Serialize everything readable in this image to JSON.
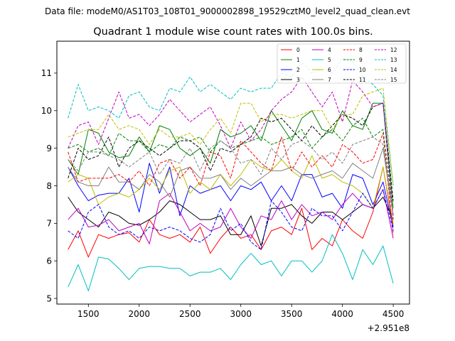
{
  "chart_data": {
    "type": "line",
    "suptitle": "Data file: modeM0/AS1T03_108T01_9000002898_19529cztM0_level2_quad_clean.evt",
    "title": "Quadrant 1 module wise count rates with 100.0s bins.",
    "xlabel": "",
    "ylabel": "",
    "x_offset_label": "+2.951e8",
    "xlim": [
      1190,
      4660
    ],
    "ylim": [
      4.85,
      11.85
    ],
    "x_ticks": [
      1500,
      2000,
      2500,
      3000,
      3500,
      4000,
      4500
    ],
    "x_tick_labels": [
      "1500",
      "2000",
      "2500",
      "3000",
      "3500",
      "4000",
      "4500"
    ],
    "y_ticks": [
      5,
      6,
      7,
      8,
      9,
      10,
      11
    ],
    "y_tick_labels": [
      "5",
      "6",
      "7",
      "8",
      "9",
      "10",
      "11"
    ],
    "legend_position": "top-right",
    "x": [
      1300,
      1400,
      1500,
      1600,
      1700,
      1800,
      1900,
      2000,
      2100,
      2200,
      2300,
      2400,
      2500,
      2600,
      2700,
      2800,
      2900,
      3000,
      3100,
      3200,
      3300,
      3400,
      3500,
      3600,
      3700,
      3800,
      3900,
      4000,
      4100,
      4200,
      4300,
      4400,
      4500
    ],
    "series": [
      {
        "name": "0",
        "color": "#ff0000",
        "dash": "solid",
        "values": [
          6.3,
          6.8,
          6.1,
          6.7,
          6.6,
          6.7,
          6.75,
          6.5,
          7.1,
          6.7,
          6.6,
          6.7,
          6.5,
          6.9,
          6.2,
          6.6,
          6.9,
          6.6,
          6.7,
          6.3,
          6.8,
          6.9,
          6.7,
          7.4,
          6.3,
          6.6,
          6.4,
          7.1,
          6.8,
          6.6,
          7.3,
          8.5,
          6.9
        ]
      },
      {
        "name": "1",
        "color": "#008000",
        "dash": "solid",
        "values": [
          8.7,
          8.3,
          9.5,
          9.4,
          8.9,
          8.75,
          8.8,
          9.3,
          8.9,
          9.6,
          9.5,
          9.0,
          8.8,
          9.0,
          8.6,
          9.5,
          9.3,
          9.4,
          9.6,
          9.2,
          10.0,
          9.6,
          9.2,
          9.8,
          10.0,
          9.5,
          9.4,
          10.0,
          9.6,
          9.5,
          10.2,
          10.2,
          7.4
        ]
      },
      {
        "name": "2",
        "color": "#0000ff",
        "dash": "solid",
        "values": [
          8.5,
          8.0,
          7.6,
          7.75,
          7.8,
          7.8,
          8.2,
          7.3,
          8.6,
          7.8,
          8.5,
          7.2,
          8.0,
          7.8,
          7.9,
          8.0,
          7.6,
          8.0,
          7.9,
          8.1,
          7.6,
          8.0,
          7.6,
          8.3,
          8.3,
          7.7,
          7.8,
          7.4,
          8.3,
          8.2,
          7.5,
          8.1,
          6.9
        ]
      },
      {
        "name": "3",
        "color": "#000000",
        "dash": "solid",
        "values": [
          7.7,
          7.3,
          7.1,
          6.9,
          7.3,
          7.2,
          7.0,
          6.95,
          7.1,
          7.3,
          7.6,
          7.5,
          7.3,
          7.1,
          7.1,
          7.2,
          6.7,
          6.7,
          7.2,
          6.4,
          7.4,
          7.4,
          7.5,
          7.2,
          7.0,
          7.3,
          7.3,
          7.1,
          7.3,
          7.5,
          7.4,
          7.7,
          7.1
        ]
      },
      {
        "name": "4",
        "color": "#bf00bf",
        "dash": "solid",
        "values": [
          7.1,
          7.4,
          6.9,
          6.95,
          7.1,
          6.8,
          6.9,
          7.0,
          6.45,
          7.6,
          7.8,
          7.3,
          6.8,
          7.0,
          6.8,
          6.9,
          7.4,
          6.9,
          6.6,
          7.2,
          7.1,
          7.6,
          7.1,
          7.5,
          7.2,
          7.3,
          7.1,
          7.5,
          7.8,
          7.5,
          7.4,
          7.9,
          6.6
        ]
      },
      {
        "name": "5",
        "color": "#00bfbf",
        "dash": "solid",
        "values": [
          5.3,
          5.9,
          5.2,
          6.1,
          6.05,
          5.8,
          5.5,
          5.8,
          5.85,
          5.85,
          5.8,
          5.8,
          5.6,
          5.7,
          5.7,
          5.8,
          5.5,
          5.9,
          6.2,
          5.9,
          6.0,
          5.6,
          6.0,
          6.0,
          5.7,
          6.0,
          6.7,
          6.2,
          5.5,
          6.3,
          5.9,
          6.4,
          5.4
        ]
      },
      {
        "name": "6",
        "color": "#bfbf00",
        "dash": "solid",
        "values": [
          8.1,
          8.3,
          8.2,
          7.5,
          7.7,
          7.8,
          7.7,
          7.9,
          8.2,
          7.9,
          8.4,
          8.5,
          7.8,
          8.1,
          7.9,
          8.3,
          8.0,
          8.3,
          8.7,
          8.5,
          8.4,
          8.7,
          8.4,
          8.2,
          8.8,
          8.2,
          8.3,
          8.1,
          8.0,
          7.8,
          7.4,
          8.5,
          7.0
        ]
      },
      {
        "name": "7",
        "color": "#808080",
        "dash": "solid",
        "values": [
          8.5,
          8.1,
          8.0,
          8.0,
          8.5,
          8.1,
          8.1,
          7.9,
          8.3,
          8.1,
          7.7,
          8.4,
          8.5,
          8.2,
          8.2,
          8.3,
          7.9,
          8.2,
          8.0,
          8.2,
          8.4,
          8.4,
          8.5,
          8.3,
          8.2,
          8.3,
          8.4,
          8.2,
          8.6,
          8.4,
          8.2,
          9.0,
          7.2
        ]
      },
      {
        "name": "8",
        "color": "#ff0000",
        "dash": "dashed",
        "values": [
          8.9,
          8.1,
          8.2,
          8.2,
          8.2,
          8.3,
          8.1,
          8.4,
          8.0,
          8.6,
          8.7,
          8.2,
          8.5,
          8.0,
          8.9,
          8.8,
          8.2,
          9.2,
          8.9,
          8.6,
          8.4,
          9.3,
          8.4,
          8.9,
          8.5,
          8.8,
          8.5,
          9.1,
          8.9,
          8.6,
          8.7,
          9.4,
          6.7
        ]
      },
      {
        "name": "9",
        "color": "#008000",
        "dash": "dashed",
        "values": [
          9.0,
          9.1,
          8.9,
          9.0,
          8.8,
          9.4,
          9.2,
          9.2,
          8.9,
          9.1,
          9.0,
          9.3,
          9.2,
          9.3,
          8.9,
          9.2,
          9.0,
          9.1,
          9.2,
          9.3,
          9.1,
          9.2,
          9.3,
          9.5,
          9.0,
          9.3,
          9.5,
          9.2,
          9.6,
          9.8,
          9.3,
          9.5,
          7.2
        ]
      },
      {
        "name": "10",
        "color": "#0000ff",
        "dash": "dashed",
        "values": [
          6.8,
          6.6,
          7.3,
          7.5,
          6.9,
          6.7,
          6.8,
          6.6,
          6.9,
          6.8,
          6.9,
          6.8,
          6.6,
          6.5,
          6.7,
          7.4,
          6.8,
          7.0,
          6.5,
          6.3,
          7.6,
          7.3,
          6.9,
          6.8,
          7.4,
          7.2,
          7.2,
          6.8,
          7.3,
          7.8,
          7.4,
          7.9,
          6.8
        ]
      },
      {
        "name": "11",
        "color": "#000000",
        "dash": "dashed",
        "values": [
          8.2,
          9.0,
          8.7,
          8.8,
          9.3,
          8.5,
          9.0,
          9.2,
          9.0,
          8.8,
          9.0,
          9.2,
          9.2,
          9.0,
          8.4,
          9.0,
          8.9,
          9.1,
          9.3,
          9.8,
          9.7,
          9.8,
          9.5,
          9.2,
          9.6,
          9.3,
          9.6,
          9.9,
          9.8,
          9.6,
          10.1,
          10.2,
          7.6
        ]
      },
      {
        "name": "12",
        "color": "#bf00bf",
        "dash": "dashed",
        "values": [
          9.0,
          9.6,
          9.7,
          9.1,
          9.8,
          10.5,
          9.8,
          9.9,
          9.6,
          9.9,
          10.3,
          10.0,
          9.7,
          9.9,
          10.1,
          9.6,
          9.0,
          9.7,
          9.2,
          9.5,
          10.0,
          10.3,
          10.5,
          10.9,
          10.5,
          10.1,
          10.5,
          9.7,
          10.8,
          10.5,
          10.1,
          10.2,
          7.1
        ]
      },
      {
        "name": "13",
        "color": "#00bfbf",
        "dash": "dashed",
        "values": [
          9.8,
          10.7,
          10.0,
          10.1,
          10.0,
          9.8,
          10.4,
          10.5,
          10.1,
          10.0,
          10.6,
          10.5,
          10.9,
          10.5,
          10.7,
          10.5,
          10.3,
          10.6,
          10.5,
          10.6,
          10.6,
          11.0,
          10.9,
          11.3,
          11.0,
          11.1,
          11.0,
          11.4,
          11.3,
          10.9,
          10.7,
          10.4,
          8.0
        ]
      },
      {
        "name": "14",
        "color": "#bfbf00",
        "dash": "dashed",
        "values": [
          9.3,
          9.4,
          9.5,
          9.5,
          9.9,
          9.5,
          9.6,
          9.5,
          9.1,
          9.5,
          9.3,
          9.3,
          9.4,
          9.1,
          9.5,
          9.8,
          9.4,
          10.2,
          10.2,
          9.7,
          9.9,
          9.9,
          9.8,
          9.9,
          10.0,
          10.0,
          9.5,
          9.9,
          9.9,
          10.4,
          10.5,
          10.6,
          8.0
        ]
      },
      {
        "name": "15",
        "color": "#808080",
        "dash": "dashed",
        "values": [
          8.7,
          8.4,
          8.9,
          8.9,
          8.8,
          8.7,
          8.5,
          8.7,
          8.9,
          8.3,
          8.7,
          8.6,
          9.0,
          8.4,
          9.0,
          9.2,
          9.0,
          8.6,
          8.7,
          8.3,
          9.0,
          8.7,
          9.1,
          9.2,
          9.0,
          8.7,
          8.9,
          8.6,
          9.1,
          9.2,
          9.3,
          9.1,
          7.2
        ]
      }
    ]
  }
}
